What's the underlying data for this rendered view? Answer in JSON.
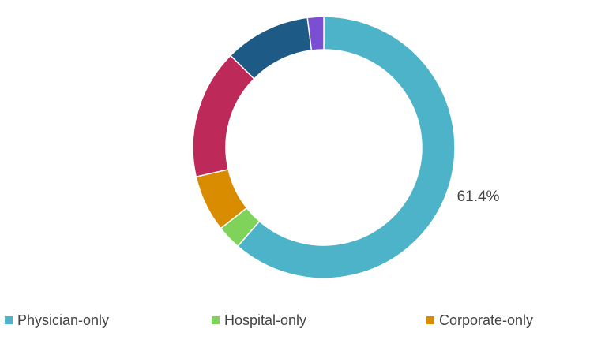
{
  "chart_data": {
    "type": "pie",
    "categories": [
      "Physician-only",
      "Hospital-only",
      "Corporate-only",
      null,
      null,
      null
    ],
    "values": [
      61.4,
      3,
      7,
      16,
      10.6,
      2
    ],
    "value_labels": [
      "61.4%",
      null,
      null,
      null,
      null,
      null
    ],
    "colors": [
      "#4db3c8",
      "#7fd35a",
      "#d98c00",
      "#bd2a5a",
      "#1d5a85",
      "#7b4fd3"
    ],
    "donut": true
  }
}
